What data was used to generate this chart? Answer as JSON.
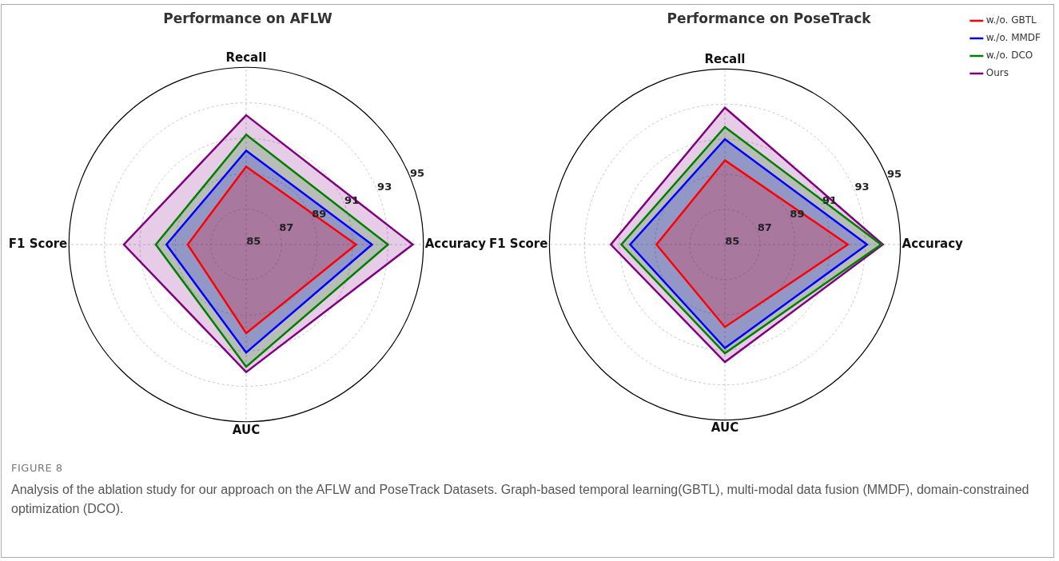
{
  "chart_data": [
    {
      "type": "radar",
      "title": "Performance on AFLW",
      "categories": [
        "Recall",
        "Accuracy",
        "AUC",
        "F1 Score"
      ],
      "ylim": [
        85,
        95
      ],
      "yticks": [
        85,
        87,
        89,
        91,
        93,
        95
      ],
      "grid": true,
      "legend": false,
      "series": [
        {
          "color": "#ff0000",
          "values": [
            89.4,
            91.2,
            90.0,
            88.3
          ]
        },
        {
          "color": "#0000ff",
          "values": [
            90.3,
            92.1,
            91.1,
            89.5
          ]
        },
        {
          "color": "#008000",
          "values": [
            91.2,
            93.0,
            91.9,
            90.1
          ]
        },
        {
          "color": "#800080",
          "values": [
            92.3,
            94.4,
            92.2,
            91.9
          ]
        }
      ],
      "annotations": [
        "FIGURE 8",
        "Analysis of the ablation study for our approach on the AFLW and PoseTrack Datasets. Graph-based temporal learning(GBTL), multi-modal data fusion (MMDF), domain-constrained optimization (DCO)."
      ]
    },
    {
      "type": "radar",
      "title": "Performance on PoseTrack",
      "categories": [
        "Recall",
        "Accuracy",
        "AUC",
        "F1 Score"
      ],
      "ylim": [
        85,
        95
      ],
      "yticks": [
        85,
        87,
        89,
        91,
        93,
        95
      ],
      "grid": true,
      "legend": "top right",
      "series": [
        {
          "name": "w./o. GBTL",
          "color": "#ff0000",
          "values": [
            89.8,
            92.0,
            89.7,
            88.9
          ]
        },
        {
          "name": "w./o. MMDF",
          "color": "#0000ff",
          "values": [
            91.0,
            93.1,
            90.9,
            90.4
          ]
        },
        {
          "name": "w./o. DCO",
          "color": "#008000",
          "values": [
            91.7,
            93.9,
            91.2,
            90.9
          ]
        },
        {
          "name": "Ours",
          "color": "#800080",
          "values": [
            92.8,
            94.0,
            91.7,
            91.5
          ]
        }
      ]
    }
  ]
}
